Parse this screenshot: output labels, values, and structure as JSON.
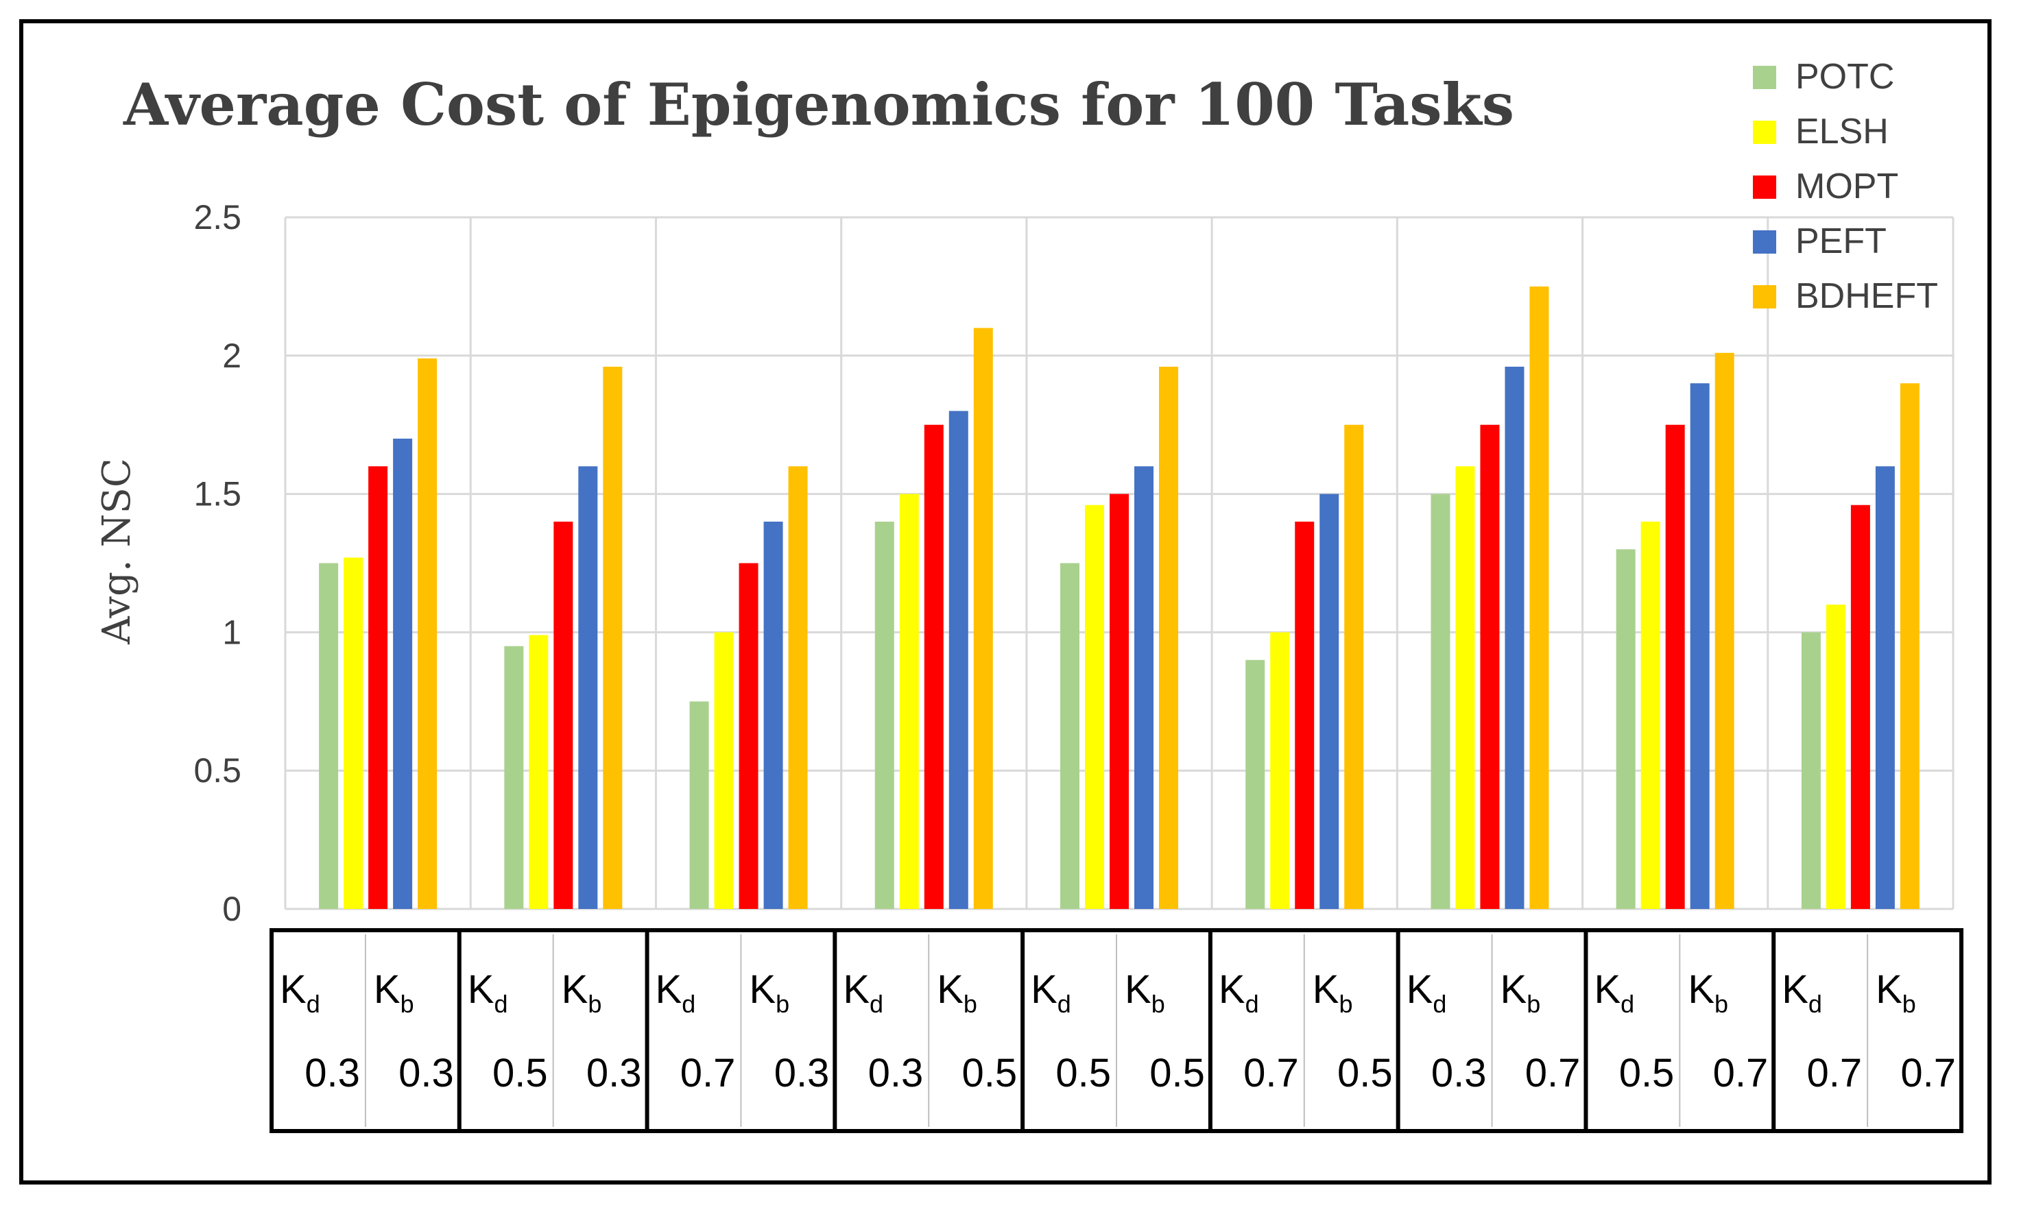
{
  "chart_data": {
    "type": "bar",
    "title": "Average Cost of Epigenomics for 100 Tasks",
    "xlabel": "",
    "ylabel": "Avg. NSC",
    "ylim": [
      0,
      2.5
    ],
    "yticks": [
      "0",
      "0.5",
      "1",
      "1.5",
      "2",
      "2.5"
    ],
    "ytick_values": [
      0,
      0.5,
      1,
      1.5,
      2,
      2.5
    ],
    "grid": true,
    "legend_position": "top-right",
    "param_header": {
      "kd_main": "K",
      "kd_sub": "d",
      "kb_main": "K",
      "kb_sub": "b"
    },
    "categories": [
      {
        "kd": "0.3",
        "kb": "0.3"
      },
      {
        "kd": "0.5",
        "kb": "0.3"
      },
      {
        "kd": "0.7",
        "kb": "0.3"
      },
      {
        "kd": "0.3",
        "kb": "0.5"
      },
      {
        "kd": "0.5",
        "kb": "0.5"
      },
      {
        "kd": "0.7",
        "kb": "0.5"
      },
      {
        "kd": "0.3",
        "kb": "0.7"
      },
      {
        "kd": "0.5",
        "kb": "0.7"
      },
      {
        "kd": "0.7",
        "kb": "0.7"
      }
    ],
    "series": [
      {
        "name": "POTC",
        "color": "#a9d18e",
        "values": [
          1.25,
          0.95,
          0.75,
          1.4,
          1.25,
          0.9,
          1.5,
          1.3,
          1.0
        ]
      },
      {
        "name": "ELSH",
        "color": "#ffff00",
        "values": [
          1.27,
          0.99,
          1.0,
          1.5,
          1.46,
          1.0,
          1.6,
          1.4,
          1.1
        ]
      },
      {
        "name": "MOPT",
        "color": "#ff0000",
        "values": [
          1.6,
          1.4,
          1.25,
          1.75,
          1.5,
          1.4,
          1.75,
          1.75,
          1.46
        ]
      },
      {
        "name": "PEFT",
        "color": "#4472c4",
        "values": [
          1.7,
          1.6,
          1.4,
          1.8,
          1.6,
          1.5,
          1.96,
          1.9,
          1.6
        ]
      },
      {
        "name": "BDHEFT",
        "color": "#ffc000",
        "values": [
          1.99,
          1.96,
          1.6,
          2.1,
          1.96,
          1.75,
          2.25,
          2.01,
          1.9
        ]
      }
    ]
  }
}
